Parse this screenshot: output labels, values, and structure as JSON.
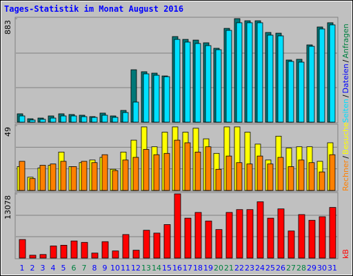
{
  "chart_data": [
    {
      "type": "bar",
      "title": "Tages-Statistik im Monat August 2016",
      "ylim": [
        0,
        883
      ],
      "yticks": [
        883
      ],
      "right_label": [
        {
          "text": "Seiten",
          "color": "#00e0ff"
        },
        {
          "text": "/",
          "color": "#000000"
        },
        {
          "text": "Dateien",
          "color": "#0000ff"
        },
        {
          "text": "/",
          "color": "#000000"
        },
        {
          "text": "Anfragen",
          "color": "#008040"
        }
      ],
      "series": [
        {
          "name": "Anfragen",
          "color": "#007878",
          "values": [
            71,
            29,
            35,
            53,
            71,
            65,
            59,
            47,
            77,
            53,
            100,
            447,
            430,
            418,
            394,
            730,
            706,
            700,
            677,
            630,
            800,
            883,
            865,
            865,
            765,
            759,
            530,
            536,
            659,
            812,
            848
          ]
        },
        {
          "name": "Seiten",
          "color": "#00e0ff",
          "values": [
            53,
            18,
            24,
            35,
            53,
            53,
            47,
            41,
            59,
            41,
            82,
            171,
            412,
            400,
            388,
            706,
            683,
            671,
            653,
            618,
            783,
            848,
            848,
            848,
            742,
            736,
            518,
            512,
            647,
            795,
            830
          ]
        }
      ]
    },
    {
      "type": "bar",
      "ylim": [
        0,
        49
      ],
      "yticks": [
        49
      ],
      "right_label": [
        {
          "text": "Rechner",
          "color": "#ff8000"
        },
        {
          "text": "/",
          "color": "#000000"
        },
        {
          "text": "Besuche",
          "color": "#ffff00"
        }
      ],
      "series": [
        {
          "name": "Besuche",
          "color": "#ffff00",
          "values": [
            18,
            10,
            17,
            19,
            29,
            18,
            21,
            23,
            25,
            16,
            29,
            38,
            48,
            33,
            44,
            48,
            44,
            47,
            39,
            28,
            48,
            48,
            44,
            35,
            23,
            41,
            32,
            33,
            33,
            22,
            36
          ]
        },
        {
          "name": "Rechner",
          "color": "#ff8000",
          "values": [
            22,
            9,
            19,
            20,
            22,
            18,
            22,
            21,
            27,
            15,
            23,
            25,
            31,
            27,
            28,
            38,
            36,
            29,
            33,
            16,
            26,
            21,
            20,
            26,
            20,
            25,
            18,
            23,
            21,
            14,
            27
          ]
        }
      ]
    },
    {
      "type": "bar",
      "ylim": [
        0,
        13078
      ],
      "yticks": [
        13078
      ],
      "right_label": [
        {
          "text": "kB",
          "color": "#ff0000"
        }
      ],
      "categories": [
        "1",
        "2",
        "3",
        "4",
        "5",
        "6",
        "7",
        "8",
        "9",
        "10",
        "11",
        "12",
        "13",
        "14",
        "15",
        "16",
        "17",
        "18",
        "19",
        "20",
        "21",
        "22",
        "23",
        "24",
        "25",
        "26",
        "27",
        "28",
        "29",
        "30",
        "31"
      ],
      "category_colors": [
        "#0000ff",
        "#0000ff",
        "#0000ff",
        "#0000ff",
        "#0000ff",
        "#008040",
        "#008040",
        "#0000ff",
        "#0000ff",
        "#0000ff",
        "#0000ff",
        "#0000ff",
        "#008040",
        "#008040",
        "#0000ff",
        "#0000ff",
        "#0000ff",
        "#0000ff",
        "#0000ff",
        "#008040",
        "#008040",
        "#0000ff",
        "#0000ff",
        "#0000ff",
        "#0000ff",
        "#0000ff",
        "#008040",
        "#008040",
        "#0000ff",
        "#0000ff",
        "#0000ff"
      ],
      "series": [
        {
          "name": "kB",
          "color": "#ff0000",
          "values": [
            3778,
            581,
            727,
            2470,
            2616,
            3488,
            3197,
            1017,
            3342,
            1453,
            4795,
            1598,
            5667,
            5086,
            6829,
            13078,
            8137,
            9300,
            7556,
            5812,
            9300,
            9881,
            9881,
            11479,
            8137,
            10026,
            5521,
            8864,
            7701,
            8428,
            10317
          ]
        }
      ]
    }
  ]
}
